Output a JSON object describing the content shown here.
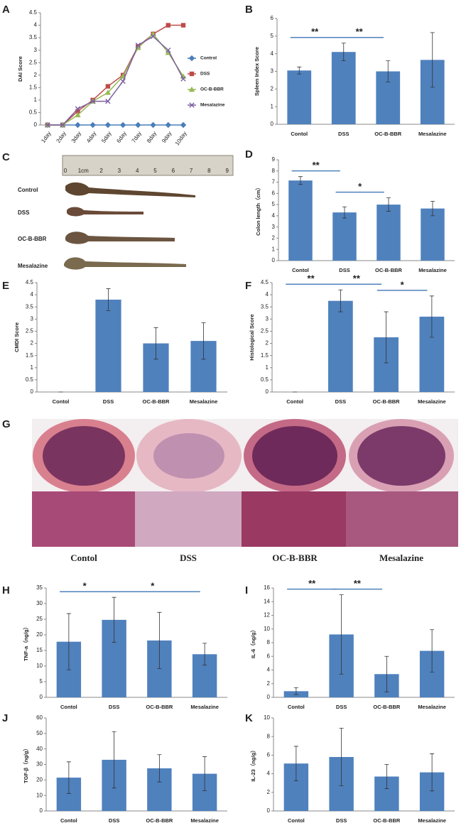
{
  "chart_data": [
    {
      "type": "line",
      "panel": "A",
      "y_label": "DAI Score",
      "categories": [
        "1day",
        "2day",
        "3day",
        "4day",
        "5day",
        "6day",
        "7day",
        "8day",
        "9day",
        "10day"
      ],
      "ylim": [
        0,
        4.5
      ],
      "yticks": [
        0,
        0.5,
        1,
        1.5,
        2,
        2.5,
        3,
        3.5,
        4,
        4.5
      ],
      "legend": "right",
      "series": [
        {
          "name": "Control",
          "color": "#4a7ebb",
          "marker": "diamond",
          "values": [
            0,
            0,
            0,
            0,
            0,
            0,
            0,
            0,
            0,
            0
          ]
        },
        {
          "name": "DSS",
          "color": "#be4b48",
          "marker": "square",
          "values": [
            0,
            0,
            0.55,
            1,
            1.55,
            2,
            3.15,
            3.65,
            4,
            4
          ]
        },
        {
          "name": "OC-B-BBR",
          "color": "#98b954",
          "marker": "triangle",
          "values": [
            0,
            0,
            0.4,
            0.95,
            1.3,
            1.95,
            3.1,
            3.65,
            2.9,
            1.95
          ]
        },
        {
          "name": "Mesalazine",
          "color": "#7d60a0",
          "marker": "x",
          "values": [
            0,
            0,
            0.65,
            0.95,
            0.95,
            1.75,
            3.2,
            3.55,
            3,
            1.85
          ]
        }
      ]
    },
    {
      "type": "bar",
      "panel": "B",
      "y_label": "Spleen Index Score",
      "color": "#4f81bd",
      "categories": [
        "Contol",
        "DSS",
        "OC-B-BBR",
        "Mesalazine"
      ],
      "values": [
        3.05,
        4.1,
        3.0,
        3.65
      ],
      "errors": [
        0.2,
        0.5,
        0.6,
        1.55
      ],
      "ylim": [
        0,
        6
      ],
      "yticks": [
        0,
        1,
        2,
        3,
        4,
        5,
        6
      ],
      "annotations": [
        {
          "text": "**",
          "categories": [
            "Contol",
            "DSS"
          ]
        },
        {
          "text": "**",
          "categories": [
            "DSS",
            "OC-B-BBR"
          ]
        }
      ]
    },
    {
      "type": "bar",
      "panel": "D",
      "y_label": "Colon length（cm）",
      "color": "#4f81bd",
      "categories": [
        "Contol",
        "DSS",
        "OC-B-BBR",
        "Mesalazine"
      ],
      "values": [
        7.15,
        4.3,
        5.0,
        4.65
      ],
      "errors": [
        0.35,
        0.5,
        0.6,
        0.65
      ],
      "ylim": [
        0,
        9
      ],
      "yticks": [
        0,
        1,
        2,
        3,
        4,
        5,
        6,
        7,
        8,
        9
      ],
      "annotations": [
        {
          "text": "**",
          "categories": [
            "Contol",
            "DSS"
          ]
        },
        {
          "text": "*",
          "categories": [
            "DSS",
            "OC-B-BBR"
          ]
        }
      ]
    },
    {
      "type": "bar",
      "panel": "E",
      "y_label": "CMDI Score",
      "color": "#4f81bd",
      "categories": [
        "Contol",
        "DSS",
        "OC-B-BBR",
        "Mesalazine"
      ],
      "values": [
        0,
        3.8,
        2.0,
        2.1
      ],
      "errors": [
        0,
        0.45,
        0.65,
        0.75
      ],
      "ylim": [
        0,
        4.5
      ],
      "yticks": [
        0,
        0.5,
        1,
        1.5,
        2,
        2.5,
        3,
        3.5,
        4,
        4.5
      ]
    },
    {
      "type": "bar",
      "panel": "F",
      "y_label": "Histological Score",
      "color": "#4f81bd",
      "categories": [
        "Contol",
        "DSS",
        "OC-B-BBR",
        "Mesalazine"
      ],
      "values": [
        0,
        3.75,
        2.25,
        3.1
      ],
      "errors": [
        0,
        0.45,
        1.05,
        0.85
      ],
      "ylim": [
        0,
        4.5
      ],
      "yticks": [
        0,
        0.5,
        1,
        1.5,
        2,
        2.5,
        3,
        3.5,
        4,
        4.5
      ],
      "annotations": [
        {
          "text": "**",
          "categories": [
            "Contol",
            "DSS"
          ]
        },
        {
          "text": "**",
          "categories": [
            "DSS",
            "OC-B-BBR"
          ]
        },
        {
          "text": "*",
          "categories": [
            "OC-B-BBR",
            "Mesalazine"
          ]
        }
      ]
    },
    {
      "type": "bar",
      "panel": "H",
      "y_label": "TNF-a（ng/g）",
      "color": "#4f81bd",
      "categories": [
        "Contol",
        "DSS",
        "OC-B-BBR",
        "Mesalazine"
      ],
      "values": [
        17.8,
        24.8,
        18.2,
        13.8
      ],
      "errors": [
        9,
        7.2,
        9,
        3.5
      ],
      "ylim": [
        0,
        35
      ],
      "yticks": [
        0,
        5,
        10,
        15,
        20,
        25,
        30,
        35
      ],
      "annotations": [
        {
          "text": "*",
          "categories": [
            "Contol",
            "DSS"
          ]
        },
        {
          "text": "*",
          "categories": [
            "DSS",
            "Mesalazine"
          ]
        }
      ]
    },
    {
      "type": "bar",
      "panel": "I",
      "y_label": "IL-6（ng/g）",
      "color": "#4f81bd",
      "categories": [
        "Contol",
        "DSS",
        "OC-B-BBR",
        "Mesalazine"
      ],
      "values": [
        0.9,
        9.2,
        3.4,
        6.8
      ],
      "errors": [
        0.5,
        5.8,
        2.6,
        3.1
      ],
      "ylim": [
        0,
        16
      ],
      "yticks": [
        0,
        2,
        4,
        6,
        8,
        10,
        12,
        14,
        16
      ],
      "annotations": [
        {
          "text": "**",
          "categories": [
            "Contol",
            "DSS"
          ]
        },
        {
          "text": "**",
          "categories": [
            "DSS",
            "OC-B-BBR"
          ]
        }
      ]
    },
    {
      "type": "bar",
      "panel": "J",
      "y_label": "TGF-β（ng/g）",
      "color": "#4f81bd",
      "categories": [
        "Contol",
        "DSS",
        "OC-B-BBR",
        "Mesalazine"
      ],
      "values": [
        21.5,
        33,
        27.5,
        24
      ],
      "errors": [
        10.2,
        18.2,
        8.8,
        11
      ],
      "ylim": [
        0,
        60
      ],
      "yticks": [
        0,
        10,
        20,
        30,
        40,
        50,
        60
      ]
    },
    {
      "type": "bar",
      "panel": "K",
      "y_label": "IL-23（ng/g）",
      "color": "#4f81bd",
      "categories": [
        "Contol",
        "DSS",
        "OC-B-BBR",
        "Mesalazine"
      ],
      "values": [
        5.1,
        5.8,
        3.7,
        4.15
      ],
      "errors": [
        1.85,
        3.1,
        1.3,
        2.0
      ],
      "ylim": [
        0,
        10
      ],
      "yticks": [
        0,
        2,
        4,
        6,
        8,
        10
      ]
    }
  ],
  "panel_c": {
    "panel": "C",
    "ruler_labels": [
      "0",
      "1cm",
      "2",
      "3",
      "4",
      "5",
      "6",
      "7",
      "8",
      "9"
    ],
    "samples": [
      "Control",
      "DSS",
      "OC-B-BBR",
      "Mesalazine"
    ]
  },
  "panel_g": {
    "panel": "G",
    "labels": [
      "Contol",
      "DSS",
      "OC-B-BBR",
      "Mesalazine"
    ]
  }
}
